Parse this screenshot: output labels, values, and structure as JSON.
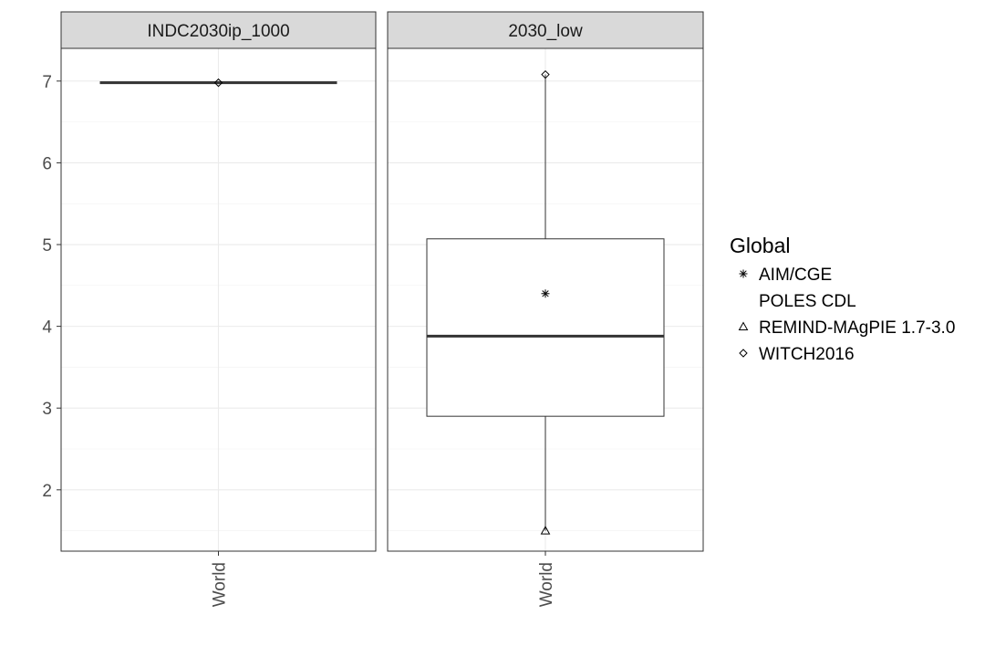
{
  "chart_data": {
    "type": "box",
    "ylim": [
      1.25,
      7.4
    ],
    "yticks": [
      2,
      3,
      4,
      5,
      6,
      7
    ],
    "grid": true,
    "legend_position": "right",
    "legend_title": "Global",
    "legend_items": [
      {
        "label": "AIM/CGE",
        "symbol": "asterisk"
      },
      {
        "label": "POLES CDL",
        "symbol": "none"
      },
      {
        "label": "REMIND-MAgPIE 1.7-3.0",
        "symbol": "triangle"
      },
      {
        "label": "WITCH2016",
        "symbol": "diamond"
      }
    ],
    "panels": [
      {
        "title": "INDC2030ip_1000",
        "category": "World",
        "box": {
          "min": 6.98,
          "q1": 6.98,
          "median": 6.98,
          "q3": 6.98,
          "max": 6.98
        },
        "points": [
          {
            "model": "WITCH2016",
            "value": 6.98
          }
        ]
      },
      {
        "title": "2030_low",
        "category": "World",
        "box": {
          "min": 1.5,
          "q1": 2.9,
          "median": 3.88,
          "q3": 5.07,
          "max": 7.08
        },
        "points": [
          {
            "model": "AIM/CGE",
            "value": 4.4
          },
          {
            "model": "REMIND-MAgPIE 1.7-3.0",
            "value": 1.5
          },
          {
            "model": "WITCH2016",
            "value": 7.08
          }
        ]
      }
    ]
  }
}
